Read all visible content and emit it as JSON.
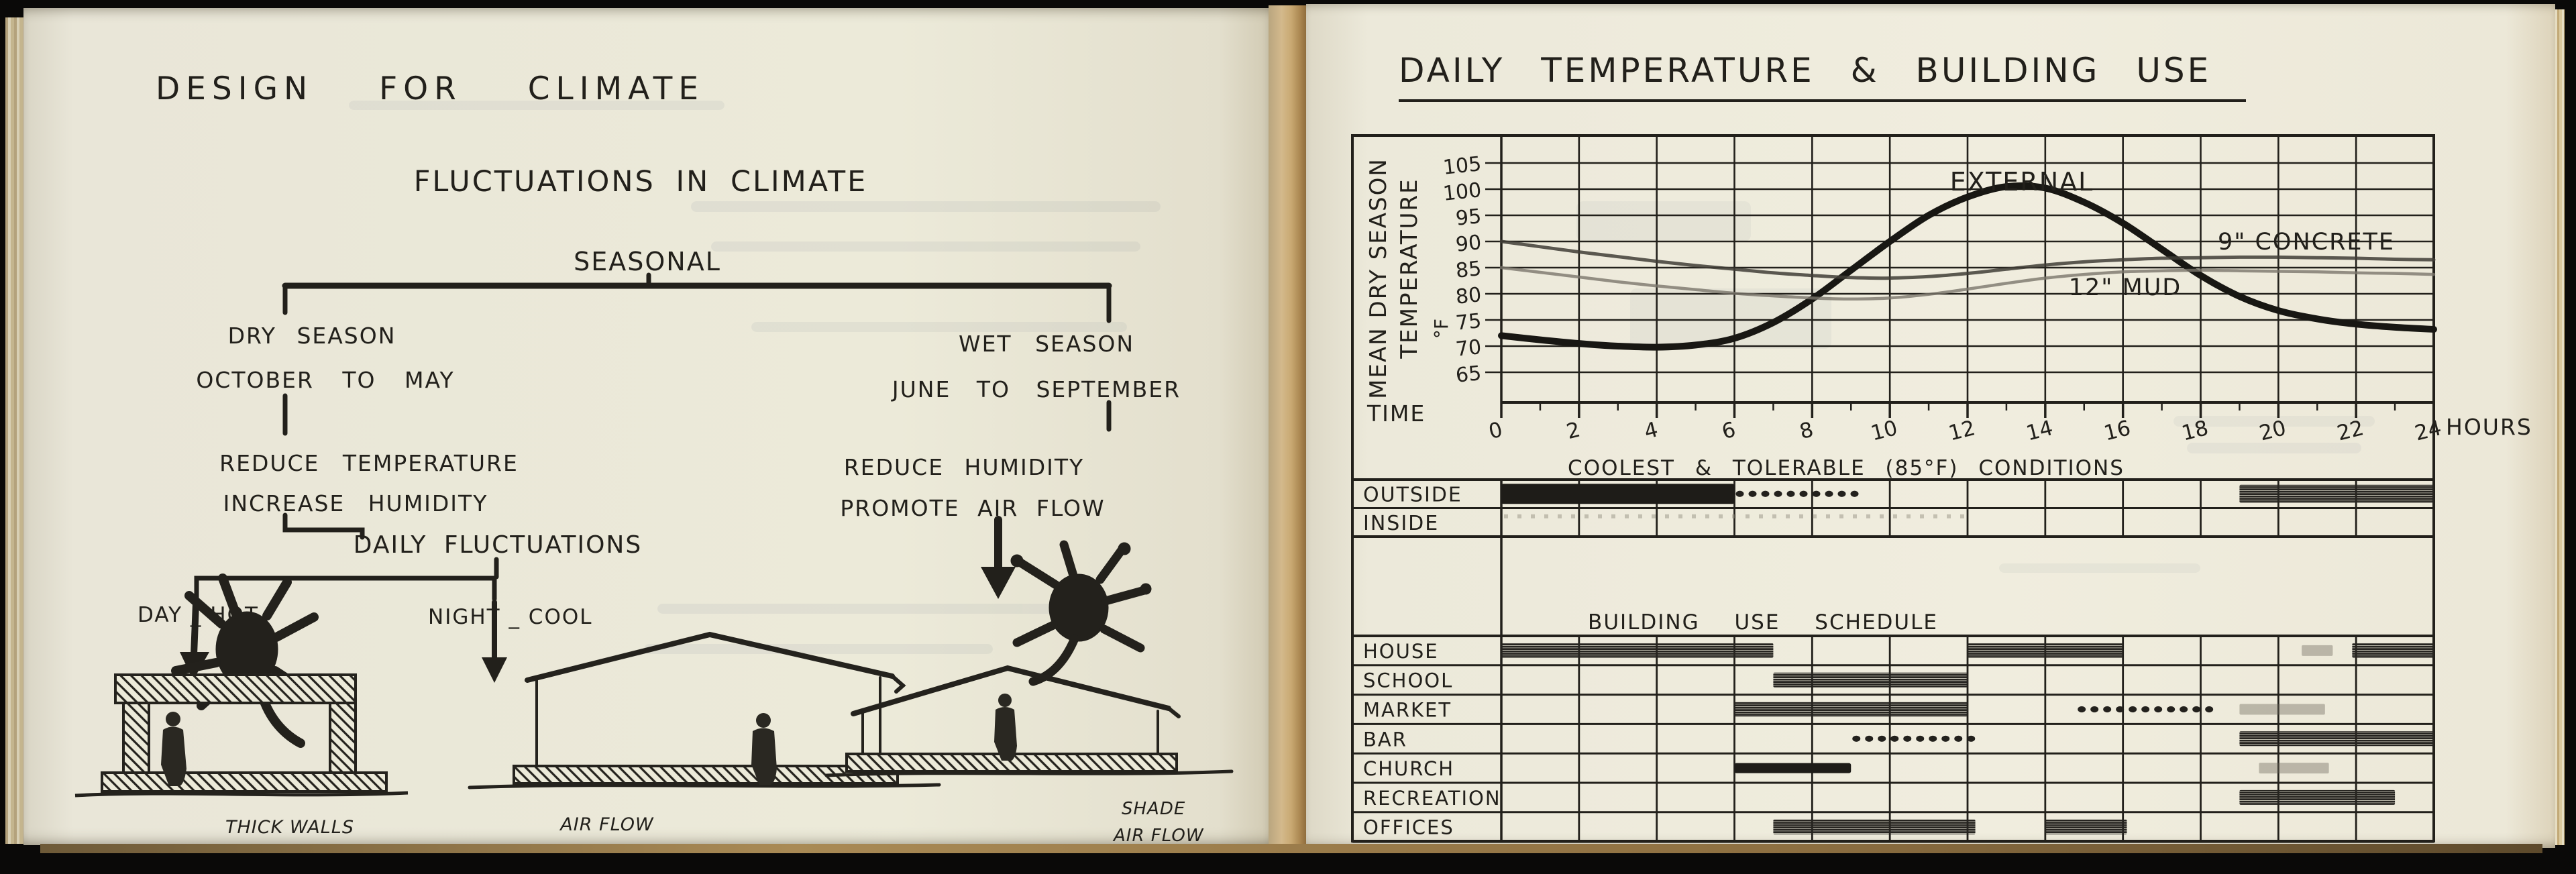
{
  "book": {
    "left_page": {
      "title": "DESIGN FOR CLIMATE",
      "diagram": {
        "heading": "FLUCTUATIONS IN CLIMATE",
        "root": "SEASONAL",
        "dry": {
          "name": "DRY SEASON",
          "period": "OCTOBER TO MAY",
          "effect1": "REDUCE TEMPERATURE",
          "effect2": "INCREASE HUMIDITY"
        },
        "wet": {
          "name": "WET SEASON",
          "period": "JUNE TO SEPTEMBER",
          "effect1": "REDUCE HUMIDITY",
          "effect2": "PROMOTE AIR FLOW"
        },
        "daily": {
          "heading": "DAILY FLUCTUATIONS",
          "day": "DAY _ HOT",
          "night": "NIGHT _ COOL"
        },
        "captions": {
          "sketch1": "THICK WALLS",
          "sketch2": "AIR FLOW",
          "sketch3_line1": "SHADE",
          "sketch3_line2": "AIR FLOW"
        }
      }
    },
    "right_page": {
      "title": "DAILY TEMPERATURE & BUILDING USE",
      "axis": {
        "ylabel_line1": "MEAN DRY SEASON",
        "ylabel_line2": "TEMPERATURE",
        "ylabel_unit": "°F",
        "time_label": "TIME",
        "hours_label": "HOURS"
      },
      "conditions_title": "COOLEST  &  TOLERABLE (85°F)  CONDITIONS",
      "schedule_title": "BUILDING USE SCHEDULE"
    },
    "ink_color": "#22201b",
    "left_paper_color": "#ecead9",
    "right_paper_color": "#f0edde"
  },
  "chart_data": [
    {
      "type": "line",
      "title": "DAILY TEMPERATURE & BUILDING USE",
      "xlabel": "TIME (HOURS)",
      "ylabel": "MEAN DRY SEASON TEMPERATURE °F",
      "ylim": [
        65,
        105
      ],
      "xlim": [
        0,
        24
      ],
      "grid": true,
      "yticks": [
        105,
        100,
        95,
        90,
        85,
        80,
        75,
        70,
        65
      ],
      "xticks": [
        0,
        2,
        4,
        6,
        8,
        10,
        12,
        14,
        16,
        18,
        20,
        22,
        24
      ],
      "x": [
        0,
        1,
        2,
        3,
        4,
        5,
        6,
        7,
        8,
        9,
        10,
        11,
        12,
        13,
        14,
        15,
        16,
        17,
        18,
        19,
        20,
        21,
        22,
        23,
        24
      ],
      "series": [
        {
          "name": "EXTERNAL",
          "values": [
            72,
            71.2,
            70.5,
            70,
            69.8,
            70.2,
            71.5,
            74.5,
            79,
            84.5,
            90,
            95,
            98.5,
            100.5,
            100.2,
            97.5,
            93.5,
            88.5,
            83.5,
            79.5,
            76.8,
            75.2,
            74.2,
            73.6,
            73.2
          ]
        },
        {
          "name": "9\" CONCRETE",
          "values": [
            90,
            89,
            88,
            87.1,
            86.2,
            85.4,
            84.7,
            84,
            83.5,
            83.1,
            83,
            83.3,
            83.9,
            84.7,
            85.5,
            86.1,
            86.5,
            86.8,
            86.9,
            87,
            87,
            86.9,
            86.8,
            86.6,
            86.5
          ]
        },
        {
          "name": "12\" MUD",
          "values": [
            85,
            84.1,
            83.2,
            82.3,
            81.5,
            80.8,
            80.1,
            79.6,
            79.2,
            79,
            79.2,
            79.9,
            80.9,
            82,
            83,
            83.7,
            84.2,
            84.4,
            84.5,
            84.4,
            84.3,
            84.2,
            84,
            83.9,
            83.7
          ]
        }
      ]
    },
    {
      "type": "gantt",
      "title": "COOLEST & TOLERABLE (85°F) CONDITIONS",
      "xrange_hours": [
        0,
        24
      ],
      "rows": [
        {
          "label": "OUTSIDE",
          "bars": [
            {
              "start": 0,
              "end": 6,
              "style": "solid"
            },
            {
              "start": 6,
              "end": 9.2,
              "style": "dotted"
            },
            {
              "start": 19,
              "end": 24,
              "style": "hatch"
            }
          ]
        },
        {
          "label": "INSIDE",
          "bars": [
            {
              "start": 0,
              "end": 12,
              "style": "speckle"
            }
          ]
        }
      ]
    },
    {
      "type": "gantt",
      "title": "BUILDING USE SCHEDULE",
      "xrange_hours": [
        0,
        24
      ],
      "rows": [
        {
          "label": "HOUSE",
          "bars": [
            {
              "start": 0,
              "end": 7,
              "style": "hatch"
            },
            {
              "start": 12,
              "end": 16,
              "style": "hatch"
            },
            {
              "start": 20.6,
              "end": 21.4,
              "style": "light"
            },
            {
              "start": 21.9,
              "end": 24,
              "style": "hatch"
            }
          ]
        },
        {
          "label": "SCHOOL",
          "bars": [
            {
              "start": 7,
              "end": 12,
              "style": "hatch"
            }
          ]
        },
        {
          "label": "MARKET",
          "bars": [
            {
              "start": 6,
              "end": 12,
              "style": "hatch"
            },
            {
              "start": 14.8,
              "end": 18.3,
              "style": "dotted"
            },
            {
              "start": 19,
              "end": 21.2,
              "style": "light"
            }
          ]
        },
        {
          "label": "BAR",
          "bars": [
            {
              "start": 9,
              "end": 12.2,
              "style": "dotted"
            },
            {
              "start": 19,
              "end": 24,
              "style": "hatch"
            }
          ]
        },
        {
          "label": "CHURCH",
          "bars": [
            {
              "start": 6,
              "end": 9,
              "style": "solid"
            },
            {
              "start": 19.5,
              "end": 21.3,
              "style": "light"
            }
          ]
        },
        {
          "label": "RECREATION",
          "bars": [
            {
              "start": 19,
              "end": 23,
              "style": "hatch"
            }
          ]
        },
        {
          "label": "OFFICES",
          "bars": [
            {
              "start": 7,
              "end": 12.2,
              "style": "hatch"
            },
            {
              "start": 14,
              "end": 16.1,
              "style": "hatch"
            }
          ]
        }
      ]
    }
  ]
}
